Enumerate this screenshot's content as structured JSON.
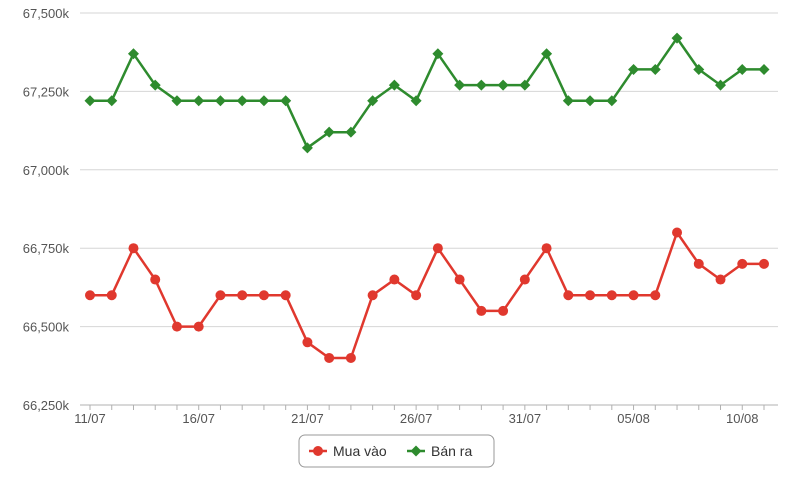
{
  "chart_data": {
    "type": "line",
    "title": "",
    "xlabel": "",
    "ylabel": "",
    "ylim": [
      66250,
      67500
    ],
    "y_ticks": [
      "66,250k",
      "66,500k",
      "66,750k",
      "67,000k",
      "67,250k",
      "67,500k"
    ],
    "y_tick_values": [
      66250,
      66500,
      66750,
      67000,
      67250,
      67500
    ],
    "x_ticks": [
      "11/07",
      "16/07",
      "21/07",
      "26/07",
      "31/07",
      "05/08",
      "10/08"
    ],
    "x_tick_indices": [
      0,
      5,
      10,
      15,
      20,
      25,
      30
    ],
    "categories": [
      "11/07",
      "12/07",
      "13/07",
      "14/07",
      "15/07",
      "16/07",
      "17/07",
      "18/07",
      "19/07",
      "20/07",
      "21/07",
      "22/07",
      "23/07",
      "24/07",
      "25/07",
      "26/07",
      "27/07",
      "28/07",
      "29/07",
      "30/07",
      "31/07",
      "01/08",
      "02/08",
      "03/08",
      "04/08",
      "05/08",
      "06/08",
      "07/08",
      "08/08",
      "09/08",
      "10/08",
      "11/08"
    ],
    "grid": true,
    "legend_position": "bottom-center",
    "series": [
      {
        "name": "Mua vào",
        "color": "#e0382e",
        "marker": "circle",
        "values": [
          66600,
          66600,
          66750,
          66650,
          66500,
          66500,
          66600,
          66600,
          66600,
          66600,
          66450,
          66400,
          66400,
          66600,
          66650,
          66600,
          66750,
          66650,
          66550,
          66550,
          66650,
          66750,
          66600,
          66600,
          66600,
          66600,
          66600,
          66800,
          66700,
          66650,
          66700,
          66700
        ]
      },
      {
        "name": "Bán ra",
        "color": "#2e8b2e",
        "marker": "diamond",
        "values": [
          67220,
          67220,
          67370,
          67270,
          67220,
          67220,
          67220,
          67220,
          67220,
          67220,
          67070,
          67120,
          67120,
          67220,
          67270,
          67220,
          67370,
          67270,
          67270,
          67270,
          67270,
          67370,
          67220,
          67220,
          67220,
          67320,
          67320,
          67420,
          67320,
          67270,
          67320,
          67320
        ]
      }
    ]
  }
}
